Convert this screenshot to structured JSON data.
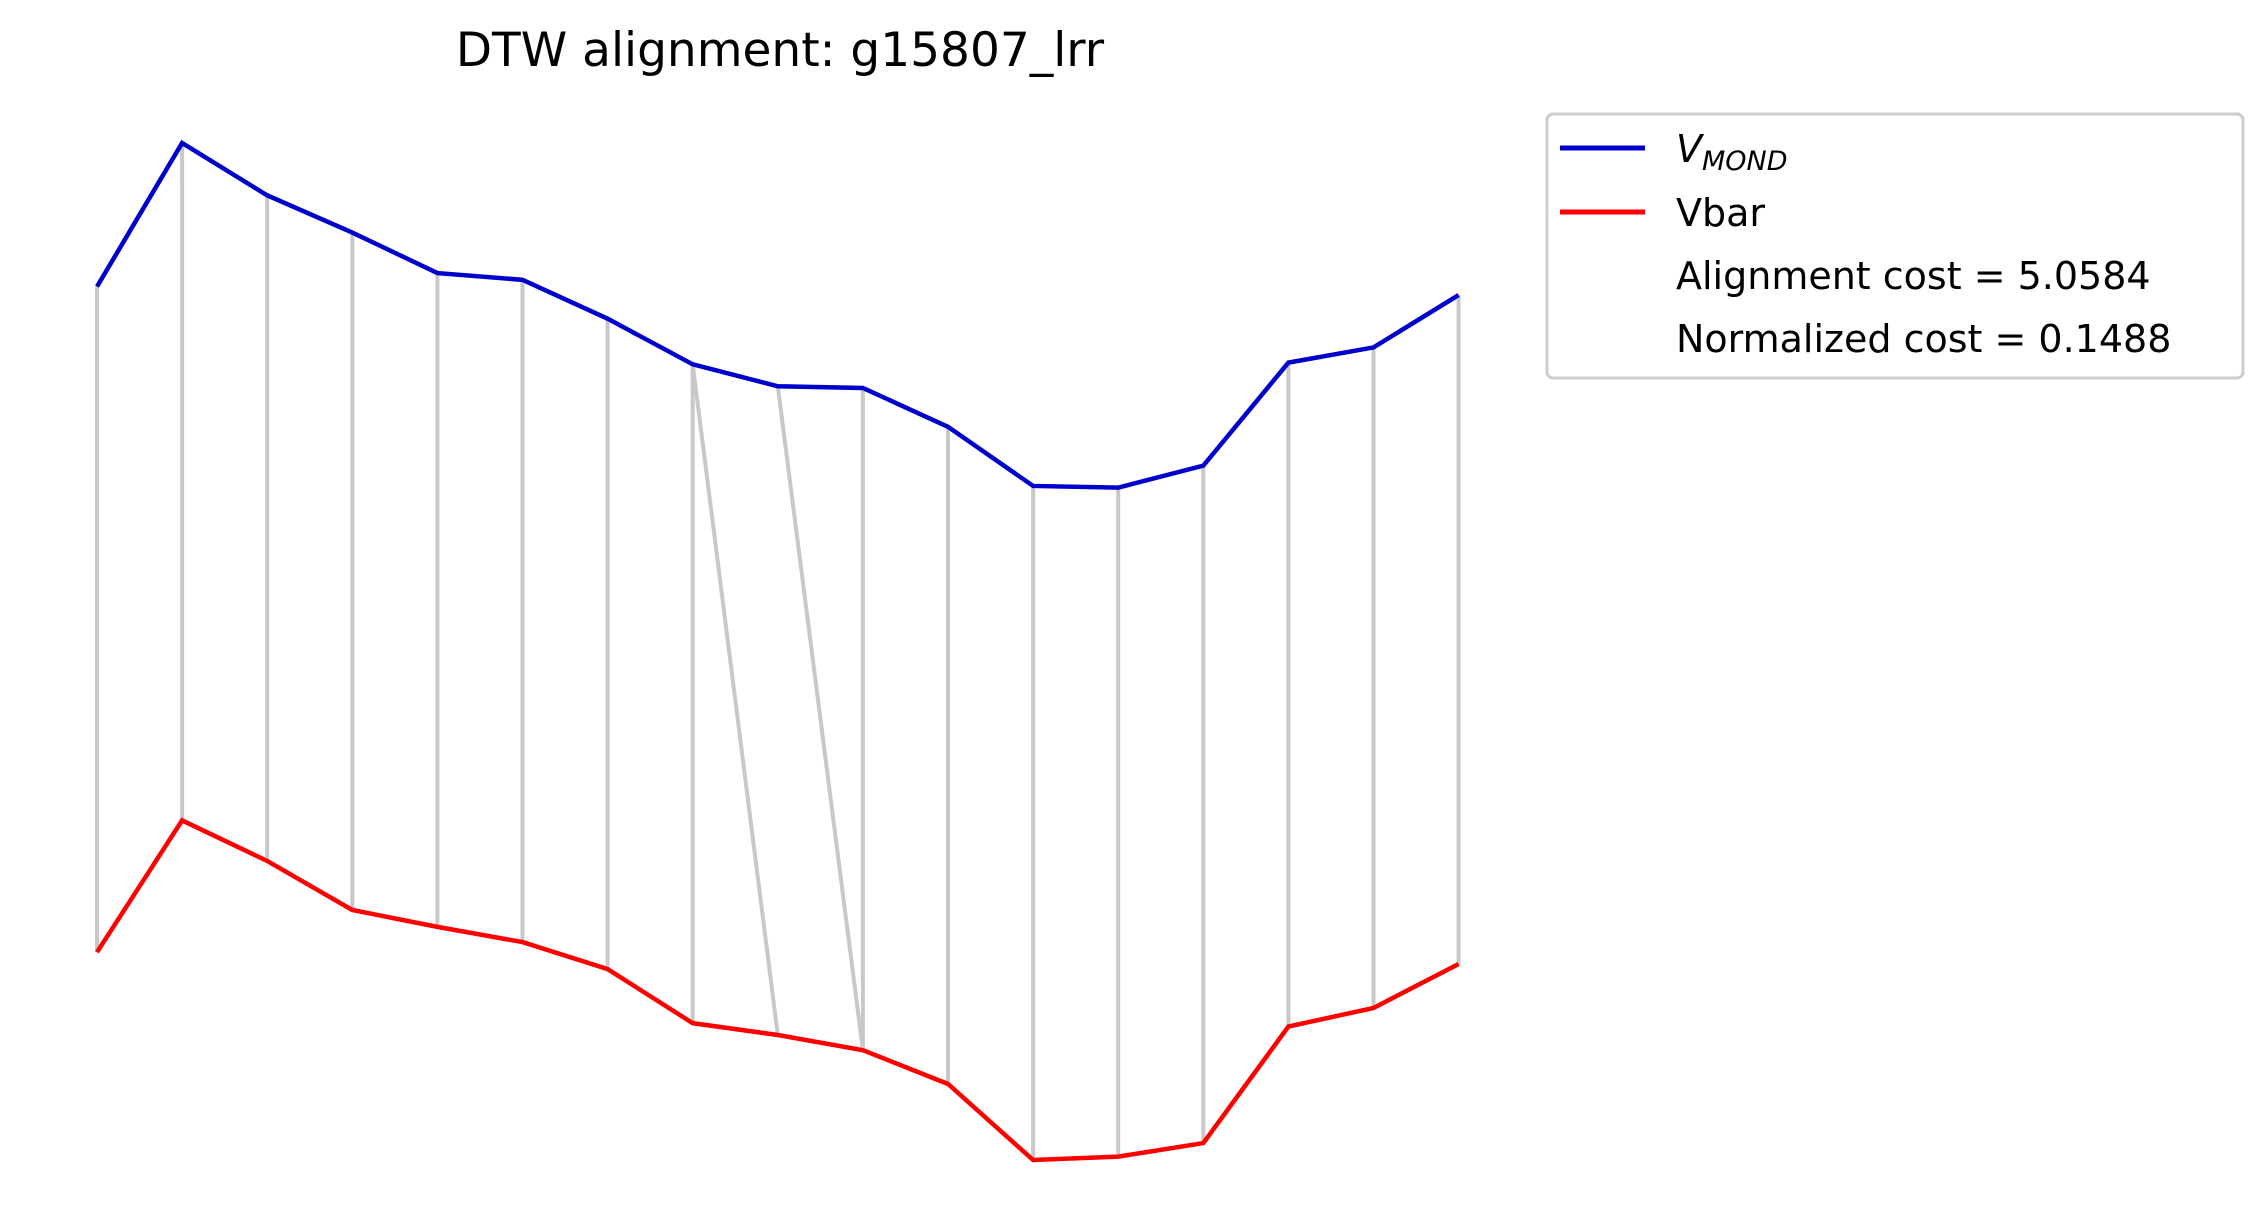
{
  "chart_data": {
    "type": "line",
    "title": "DTW alignment: g15807_lrr",
    "xlabel": "",
    "ylabel": "",
    "axes_visible": false,
    "grid": false,
    "legend_position": "upper-right-outside",
    "series": [
      {
        "name": "V_MOND",
        "legend_main": "V",
        "legend_sub": "MOND",
        "color": "#0000cc",
        "values": [
          2.0,
          2.85,
          2.54,
          2.32,
          2.08,
          2.04,
          1.81,
          1.54,
          1.41,
          1.4,
          1.17,
          0.82,
          0.81,
          0.94,
          1.55,
          1.64,
          1.95
        ]
      },
      {
        "name": "Vbar",
        "color": "#ff0000",
        "values": [
          -1.94,
          -1.16,
          -1.4,
          -1.69,
          -1.79,
          -1.88,
          -2.04,
          -2.36,
          -2.43,
          -2.52,
          -2.72,
          -3.17,
          -3.15,
          -3.07,
          -2.38,
          -2.27,
          -2.01
        ]
      }
    ],
    "alignment_color": "#c8c8c8",
    "alignment_pairs": [
      [
        0,
        0
      ],
      [
        1,
        1
      ],
      [
        2,
        2
      ],
      [
        3,
        3
      ],
      [
        4,
        4
      ],
      [
        5,
        5
      ],
      [
        6,
        6
      ],
      [
        7,
        7
      ],
      [
        7,
        8
      ],
      [
        8,
        9
      ],
      [
        9,
        9
      ],
      [
        10,
        10
      ],
      [
        11,
        11
      ],
      [
        12,
        12
      ],
      [
        13,
        13
      ],
      [
        14,
        14
      ],
      [
        15,
        15
      ],
      [
        16,
        16
      ]
    ],
    "annotations": [
      "Alignment cost = 5.0584",
      "Normalized cost = 0.1488"
    ]
  }
}
